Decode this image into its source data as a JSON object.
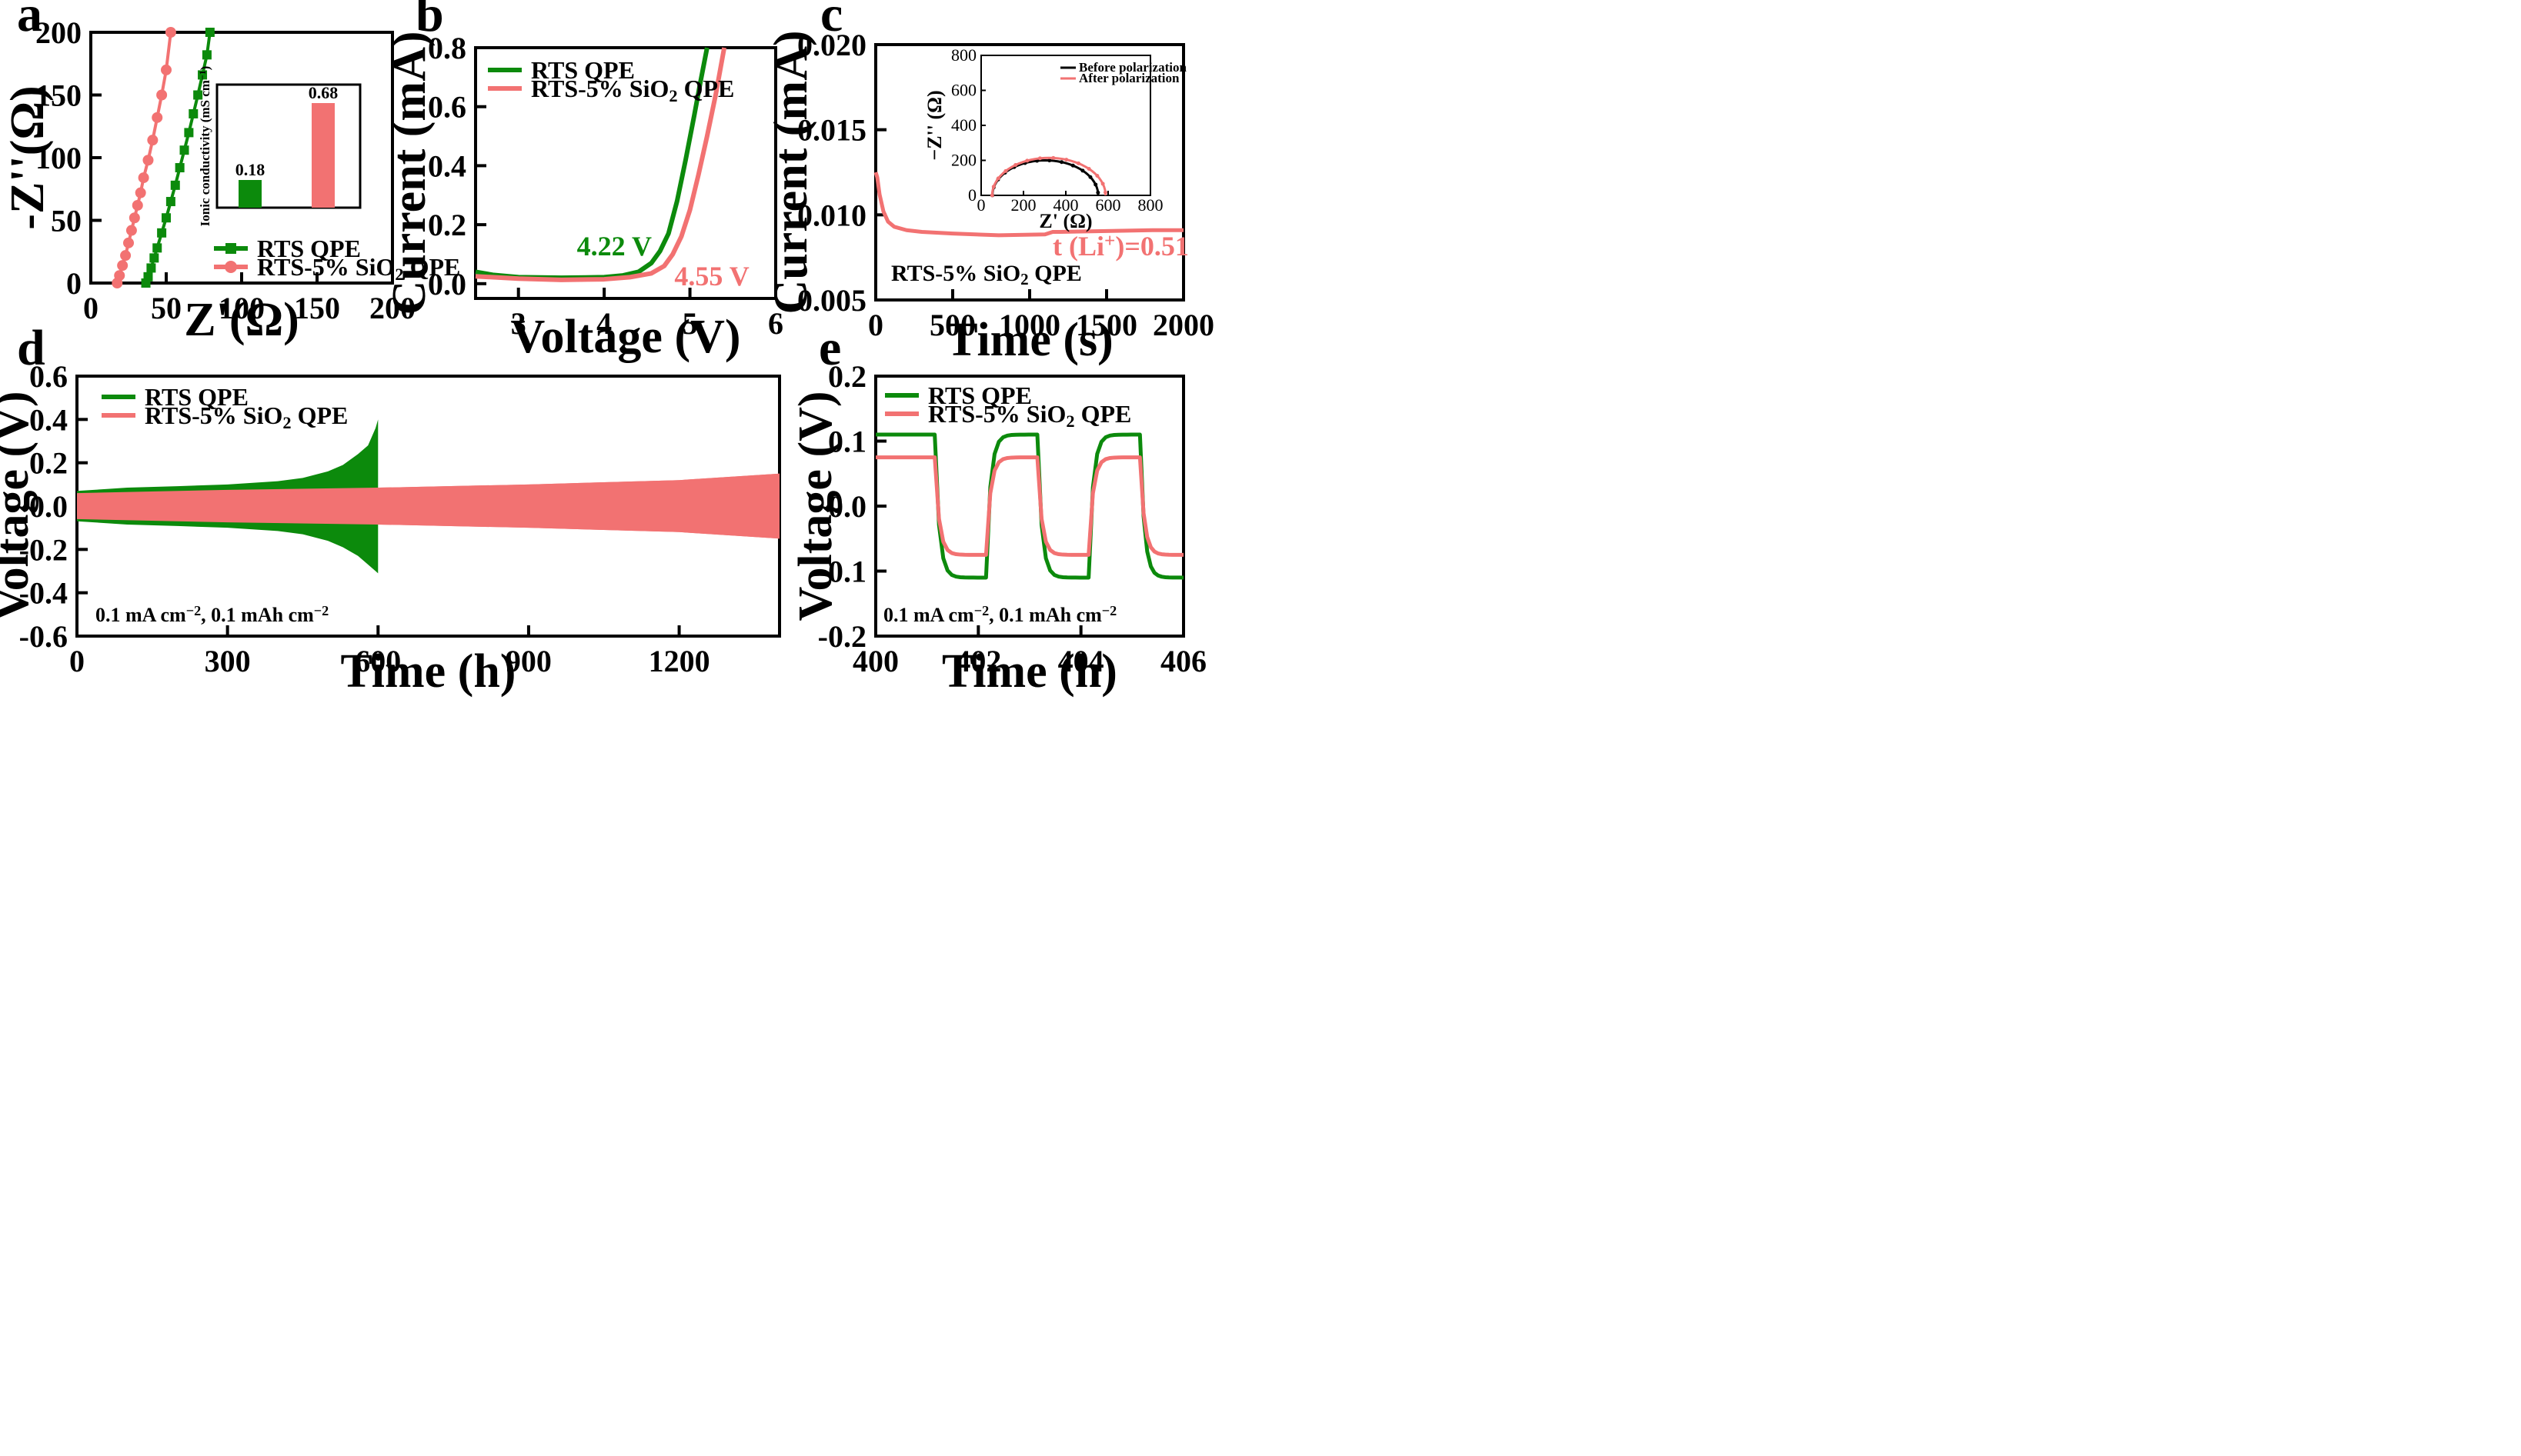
{
  "colors": {
    "green": "#0c8a0c",
    "red": "#f27272",
    "black": "#000000"
  },
  "chart_data": [
    {
      "id": "a",
      "type": "line",
      "panel_label": "a",
      "xlabel": "Z'(Ω)",
      "ylabel": "-Z''(Ω)",
      "xlim": [
        0,
        200
      ],
      "ylim": [
        0,
        200
      ],
      "xticks": [
        "0",
        "50",
        "100",
        "150",
        "200"
      ],
      "yticks": [
        "0",
        "50",
        "100",
        "150",
        "200"
      ],
      "series": [
        {
          "name": "RTS QPE",
          "color": "green",
          "marker": "square",
          "x": [
            36.5,
            38,
            40,
            42,
            44,
            47,
            50,
            53,
            56,
            59,
            62,
            65,
            68,
            71,
            74,
            77,
            79
          ],
          "y": [
            0,
            5,
            12,
            20,
            28,
            40,
            52,
            65,
            78,
            92,
            106,
            120,
            135,
            150,
            166,
            182,
            200
          ]
        },
        {
          "name": "RTS-5% SiO₂ QPE",
          "color": "red",
          "marker": "circle",
          "x": [
            17.5,
            19,
            21,
            23,
            25,
            27,
            29,
            31,
            33,
            35,
            38,
            41,
            44,
            47,
            50,
            53
          ],
          "y": [
            0,
            6,
            14,
            22,
            32,
            42,
            52,
            62,
            72,
            84,
            98,
            114,
            132,
            150,
            170,
            200
          ]
        }
      ],
      "legend": [
        {
          "label": "RTS QPE",
          "color": "green"
        },
        {
          "label": "RTS-5% SiO₂ QPE",
          "color": "red"
        }
      ],
      "inset": {
        "type": "bar",
        "ylabel": "Ionic conductivity (mS cm⁻¹)",
        "values": [
          0.18,
          0.68
        ],
        "value_labels": [
          "0.18",
          "0.68"
        ],
        "colors": [
          "green",
          "red"
        ],
        "ylim": [
          0,
          0.8
        ]
      }
    },
    {
      "id": "b",
      "type": "line",
      "panel_label": "b",
      "xlabel": "Voltage (V)",
      "ylabel": "Current (mA)",
      "xlim": [
        2.5,
        6
      ],
      "ylim": [
        -0.05,
        0.8
      ],
      "xticks": [
        "3",
        "4",
        "5",
        "6"
      ],
      "yticks": [
        "0.0",
        "0.2",
        "0.4",
        "0.6",
        "0.8"
      ],
      "series": [
        {
          "name": "RTS QPE",
          "color": "green",
          "x": [
            2.5,
            2.7,
            3.0,
            3.5,
            4.0,
            4.22,
            4.4,
            4.55,
            4.65,
            4.75,
            4.85,
            4.95,
            5.05,
            5.12,
            5.2
          ],
          "y": [
            0.04,
            0.03,
            0.022,
            0.02,
            0.022,
            0.028,
            0.04,
            0.07,
            0.11,
            0.17,
            0.28,
            0.42,
            0.57,
            0.68,
            0.8
          ]
        },
        {
          "name": "RTS-5% SiO₂ QPE",
          "color": "red",
          "x": [
            2.5,
            3.0,
            3.5,
            4.0,
            4.3,
            4.55,
            4.7,
            4.8,
            4.9,
            5.0,
            5.1,
            5.2,
            5.3,
            5.4
          ],
          "y": [
            0.025,
            0.017,
            0.013,
            0.015,
            0.022,
            0.035,
            0.06,
            0.1,
            0.16,
            0.25,
            0.37,
            0.5,
            0.64,
            0.8
          ]
        }
      ],
      "legend": [
        {
          "label": "RTS QPE",
          "color": "green"
        },
        {
          "label": "RTS-5% SiO₂ QPE",
          "color": "red"
        }
      ],
      "annotations": [
        {
          "text": "4.22 V",
          "color": "green",
          "x": 4.22,
          "y": 0.07
        },
        {
          "text": "4.55 V",
          "color": "red",
          "x": 4.55,
          "y": -0.035
        }
      ]
    },
    {
      "id": "c",
      "type": "line",
      "panel_label": "c",
      "xlabel": "Time (s)",
      "ylabel": "Current (mA)",
      "xlim": [
        0,
        2000
      ],
      "ylim": [
        0.005,
        0.02
      ],
      "xticks": [
        "0",
        "500",
        "1000",
        "1500",
        "2000"
      ],
      "yticks": [
        "0.005",
        "0.010",
        "0.015",
        "0.020"
      ],
      "series": [
        {
          "name": "RTS-5% SiO₂ QPE",
          "color": "red",
          "x": [
            0,
            10,
            25,
            50,
            80,
            120,
            200,
            300,
            500,
            800,
            1100,
            1150,
            1200,
            1500,
            1800,
            2000
          ],
          "y": [
            0.0125,
            0.0122,
            0.0112,
            0.0102,
            0.0096,
            0.0093,
            0.0091,
            0.009,
            0.0089,
            0.0088,
            0.00885,
            0.009,
            0.009,
            0.00905,
            0.0091,
            0.0091
          ]
        }
      ],
      "annotations": [
        {
          "text": "t (Li⁺)=0.51",
          "color": "red"
        },
        {
          "text": "RTS-5% SiO₂ QPE",
          "color": "black"
        }
      ],
      "inset": {
        "type": "line",
        "xlabel": "Z' (Ω)",
        "ylabel": "−Z'' (Ω)",
        "xlim": [
          0,
          800
        ],
        "ylim": [
          0,
          800
        ],
        "xticks": [
          "0",
          "200",
          "400",
          "600",
          "800"
        ],
        "yticks": [
          "0",
          "200",
          "400",
          "600",
          "800"
        ],
        "series": [
          {
            "name": "Before polarization",
            "color": "black",
            "center": 303,
            "radius": 250
          },
          {
            "name": "After polarization",
            "color": "red",
            "center": 320,
            "radius": 268
          }
        ]
      }
    },
    {
      "id": "d",
      "type": "area",
      "panel_label": "d",
      "xlabel": "Time (h)",
      "ylabel": "Voltage (V)",
      "xlim": [
        0,
        1400
      ],
      "ylim": [
        -0.6,
        0.6
      ],
      "xticks": [
        "0",
        "300",
        "600",
        "900",
        "1200"
      ],
      "yticks": [
        "-0.6",
        "-0.4",
        "-0.2",
        "0.0",
        "0.2",
        "0.4",
        "0.6"
      ],
      "series": [
        {
          "name": "RTS QPE",
          "color": "green",
          "x": [
            0,
            100,
            200,
            300,
            400,
            450,
            500,
            530,
            560,
            580,
            595,
            600
          ],
          "upper": [
            0.07,
            0.085,
            0.092,
            0.1,
            0.115,
            0.13,
            0.16,
            0.19,
            0.24,
            0.28,
            0.36,
            0.4
          ],
          "lower": [
            -0.07,
            -0.085,
            -0.092,
            -0.1,
            -0.115,
            -0.13,
            -0.16,
            -0.19,
            -0.23,
            -0.27,
            -0.3,
            -0.31
          ]
        },
        {
          "name": "RTS-5% SiO₂ QPE",
          "color": "red",
          "x": [
            0,
            300,
            600,
            900,
            1200,
            1400
          ],
          "upper": [
            0.06,
            0.075,
            0.085,
            0.1,
            0.12,
            0.15
          ],
          "lower": [
            -0.06,
            -0.075,
            -0.085,
            -0.1,
            -0.12,
            -0.15
          ]
        }
      ],
      "legend": [
        {
          "label": "RTS QPE",
          "color": "green"
        },
        {
          "label": "RTS-5% SiO₂ QPE",
          "color": "red"
        }
      ],
      "annotations": [
        {
          "text": "0.1 mA cm⁻², 0.1 mAh cm⁻²",
          "color": "black"
        }
      ]
    },
    {
      "id": "e",
      "type": "line",
      "panel_label": "e",
      "xlabel": "Time (h)",
      "ylabel": "Voltage (V)",
      "xlim": [
        400,
        406
      ],
      "ylim": [
        -0.2,
        0.2
      ],
      "xticks": [
        "400",
        "402",
        "404",
        "406"
      ],
      "yticks": [
        "-0.2",
        "-0.1",
        "0.0",
        "0.1",
        "0.2"
      ],
      "series": [
        {
          "name": "RTS QPE",
          "color": "green",
          "amplitude": 0.11,
          "period_h": 2,
          "start_phase": "positive"
        },
        {
          "name": "RTS-5% SiO₂ QPE",
          "color": "red",
          "amplitude": 0.075,
          "period_h": 2,
          "start_phase": "positive"
        }
      ],
      "legend": [
        {
          "label": "RTS QPE",
          "color": "green"
        },
        {
          "label": "RTS-5% SiO₂ QPE",
          "color": "red"
        }
      ],
      "annotations": [
        {
          "text": "0.1 mA cm⁻², 0.1 mAh cm⁻²",
          "color": "black"
        }
      ]
    }
  ]
}
